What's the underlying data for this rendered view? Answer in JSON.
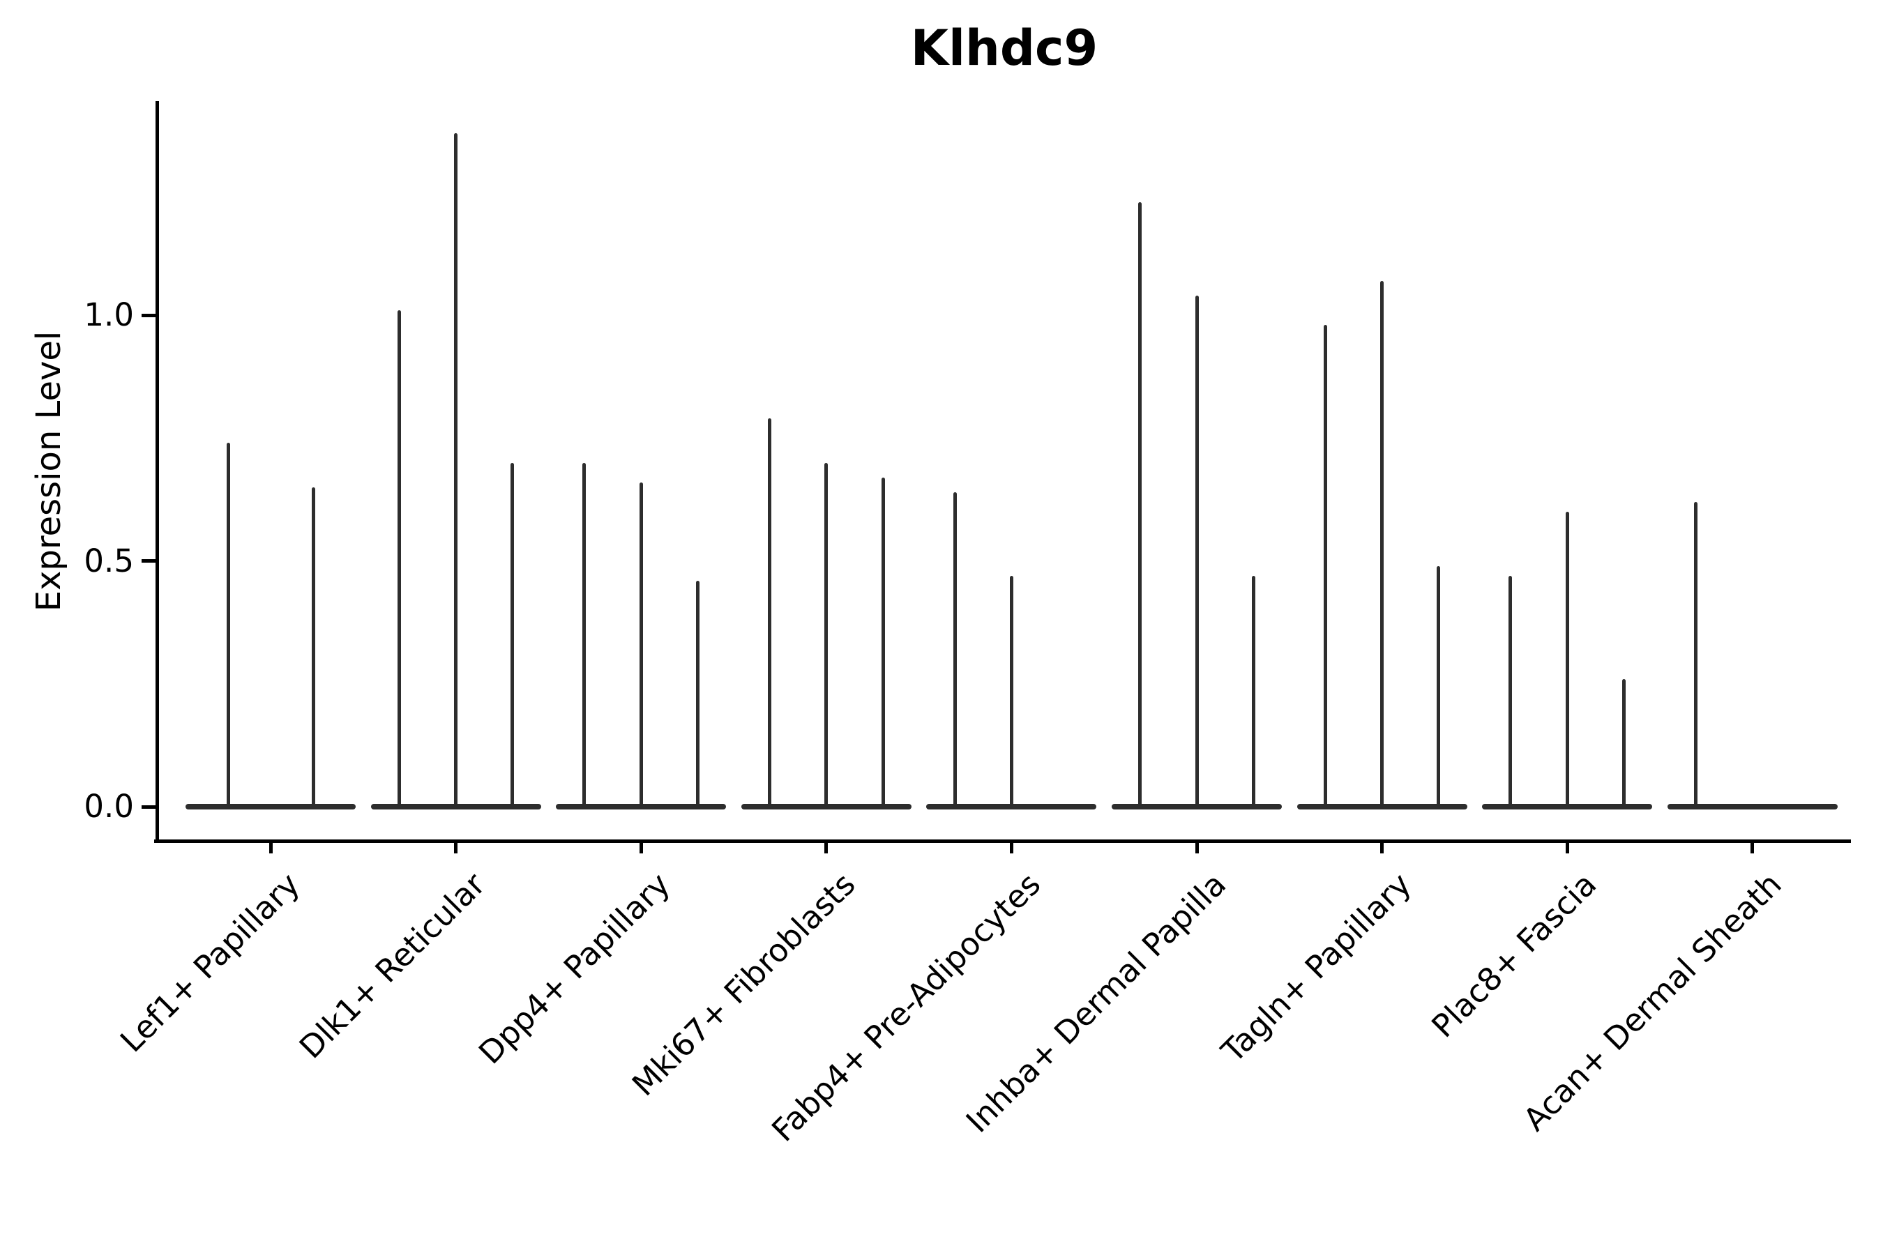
{
  "title": "Klhdc9",
  "y_axis": {
    "label": "Expression Level",
    "tick_labels": [
      "0.0",
      "0.5",
      "1.0"
    ]
  },
  "x_axis": {
    "tick_labels": [
      "Lef1+ Papillary",
      "Dlk1+ Reticular",
      "Dpp4+ Papillary",
      "Mki67+ Fibroblasts",
      "Fabp4+ Pre-Adipocytes",
      "Inhba+ Dermal Papilla",
      "Tagln+ Papillary",
      "Plac8+ Fascia",
      "Acan+ Dermal Sheath"
    ]
  },
  "colors": {
    "violin_line": "#2d2d2d",
    "axis": "#000000",
    "text": "#000000",
    "background": "#ffffff"
  },
  "chart_data": {
    "type": "violin",
    "title": "Klhdc9",
    "xlabel": "",
    "ylabel": "Expression Level",
    "yticks": [
      0.0,
      0.5,
      1.0
    ],
    "ylim": [
      -0.07,
      1.44
    ],
    "grid": false,
    "legend": false,
    "categories": [
      "Lef1+ Papillary",
      "Dlk1+ Reticular",
      "Dpp4+ Papillary",
      "Mki67+ Fibroblasts",
      "Fabp4+ Pre-Adipocytes",
      "Inhba+ Dermal Papilla",
      "Tagln+ Papillary",
      "Plac8+ Fascia",
      "Acan+ Dermal Sheath"
    ],
    "groups": [
      {
        "category": "Lef1+ Papillary",
        "violin_maxima": [
          0.74,
          0.65
        ]
      },
      {
        "category": "Dlk1+ Reticular",
        "violin_maxima": [
          1.01,
          1.37,
          0.7
        ]
      },
      {
        "category": "Dpp4+ Papillary",
        "violin_maxima": [
          0.7,
          0.66,
          0.46
        ]
      },
      {
        "category": "Mki67+ Fibroblasts",
        "violin_maxima": [
          0.79,
          0.7,
          0.67
        ]
      },
      {
        "category": "Fabp4+ Pre-Adipocytes",
        "violin_maxima": [
          0.64,
          0.47,
          0.0
        ]
      },
      {
        "category": "Inhba+ Dermal Papilla",
        "violin_maxima": [
          1.23,
          1.04,
          0.47
        ]
      },
      {
        "category": "Tagln+ Papillary",
        "violin_maxima": [
          0.98,
          1.07,
          0.49
        ]
      },
      {
        "category": "Plac8+ Fascia",
        "violin_maxima": [
          0.47,
          0.6,
          0.26
        ]
      },
      {
        "category": "Acan+ Dermal Sheath",
        "violin_maxima": [
          0.62,
          0.0,
          0.0
        ]
      }
    ]
  }
}
